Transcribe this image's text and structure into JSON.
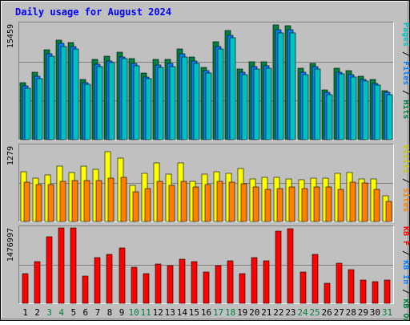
{
  "chart_data": {
    "type": "bar",
    "title": "Daily usage for August 2024",
    "categories": [
      "1",
      "2",
      "3",
      "4",
      "5",
      "6",
      "7",
      "8",
      "9",
      "10",
      "11",
      "12",
      "13",
      "14",
      "15",
      "16",
      "17",
      "18",
      "19",
      "20",
      "21",
      "22",
      "23",
      "24",
      "25",
      "26",
      "27",
      "28",
      "29",
      "30",
      "31"
    ],
    "weekend_days": [
      3,
      4,
      10,
      11,
      17,
      18,
      24,
      25,
      31
    ],
    "panels": [
      {
        "id": "top",
        "max_label": "15459",
        "ylim": [
          0,
          15459
        ],
        "label_parts": [
          {
            "text": "Pages",
            "color": "#00c0c0"
          },
          {
            "text": " / ",
            "color": "#000000"
          },
          {
            "text": "Files",
            "color": "#0080ff"
          },
          {
            "text": " / ",
            "color": "#000000"
          },
          {
            "text": "Hits",
            "color": "#008040"
          }
        ],
        "series": [
          {
            "name": "Hits",
            "color": "#008040",
            "values": [
              7600,
              9000,
              12000,
              13300,
              13000,
              8000,
              10700,
              11200,
              11700,
              10800,
              8900,
              10700,
              10700,
              12100,
              11100,
              9700,
              13100,
              14600,
              9500,
              10400,
              10400,
              15300,
              15200,
              9600,
              10200,
              6700,
              9600,
              9200,
              8500,
              8000,
              6600
            ]
          },
          {
            "name": "Files",
            "color": "#0080ff",
            "values": [
              7200,
              8500,
              11500,
              12900,
              12500,
              7600,
              10100,
              10500,
              11100,
              10200,
              8400,
              10000,
              10200,
              11500,
              10500,
              9200,
              12500,
              14000,
              9000,
              9800,
              9900,
              14700,
              14700,
              9000,
              9800,
              6300,
              9000,
              8700,
              8000,
              7500,
              6300
            ]
          },
          {
            "name": "Pages",
            "color": "#00c0c0",
            "values": [
              6900,
              8200,
              11200,
              12500,
              12100,
              7400,
              9800,
              10300,
              10800,
              9900,
              8200,
              9700,
              9800,
              11100,
              10200,
              8900,
              12100,
              13600,
              8700,
              9500,
              9600,
              14300,
              14300,
              8700,
              9500,
              6000,
              8800,
              8400,
              7800,
              7300,
              6000
            ]
          }
        ]
      },
      {
        "id": "middle",
        "max_label": "1279",
        "ylim": [
          0,
          1279
        ],
        "label_parts": [
          {
            "text": "Visits",
            "color": "#c8c800"
          },
          {
            "text": " / ",
            "color": "#000000"
          },
          {
            "text": "Sites",
            "color": "#ff8000"
          }
        ],
        "series": [
          {
            "name": "Visits",
            "color": "#ffff00",
            "values": [
              850,
              740,
              790,
              940,
              830,
              940,
              890,
              1190,
              1080,
              610,
              820,
              1000,
              800,
              1000,
              680,
              800,
              850,
              810,
              900,
              720,
              750,
              750,
              720,
              710,
              740,
              740,
              810,
              830,
              720,
              720,
              440
            ]
          },
          {
            "name": "Sites",
            "color": "#ff8000",
            "values": [
              660,
              620,
              620,
              680,
              700,
              700,
              700,
              740,
              750,
              500,
              560,
              680,
              610,
              680,
              580,
              620,
              680,
              670,
              640,
              580,
              550,
              560,
              590,
              560,
              590,
              580,
              550,
              660,
              650,
              540,
              340
            ]
          }
        ]
      },
      {
        "id": "bottom",
        "max_label": "1476997",
        "ylim": [
          0,
          1476997
        ],
        "label_parts": [
          {
            "text": "KB F",
            "color": "#ff0000"
          },
          {
            "text": " / ",
            "color": "#000000"
          },
          {
            "text": "KB In",
            "color": "#0080ff"
          },
          {
            "text": " / ",
            "color": "#000000"
          },
          {
            "text": "KB Out",
            "color": "#008040"
          }
        ],
        "series": [
          {
            "name": "KB F",
            "color": "#ff0000",
            "values": [
              580000,
              820000,
              1310000,
              1470000,
              1470000,
              530000,
              890000,
              960000,
              1080000,
              710000,
              580000,
              770000,
              740000,
              860000,
              820000,
              620000,
              740000,
              840000,
              580000,
              900000,
              840000,
              1420000,
              1460000,
              620000,
              960000,
              400000,
              780000,
              660000,
              450000,
              420000,
              460000
            ]
          }
        ]
      }
    ]
  }
}
